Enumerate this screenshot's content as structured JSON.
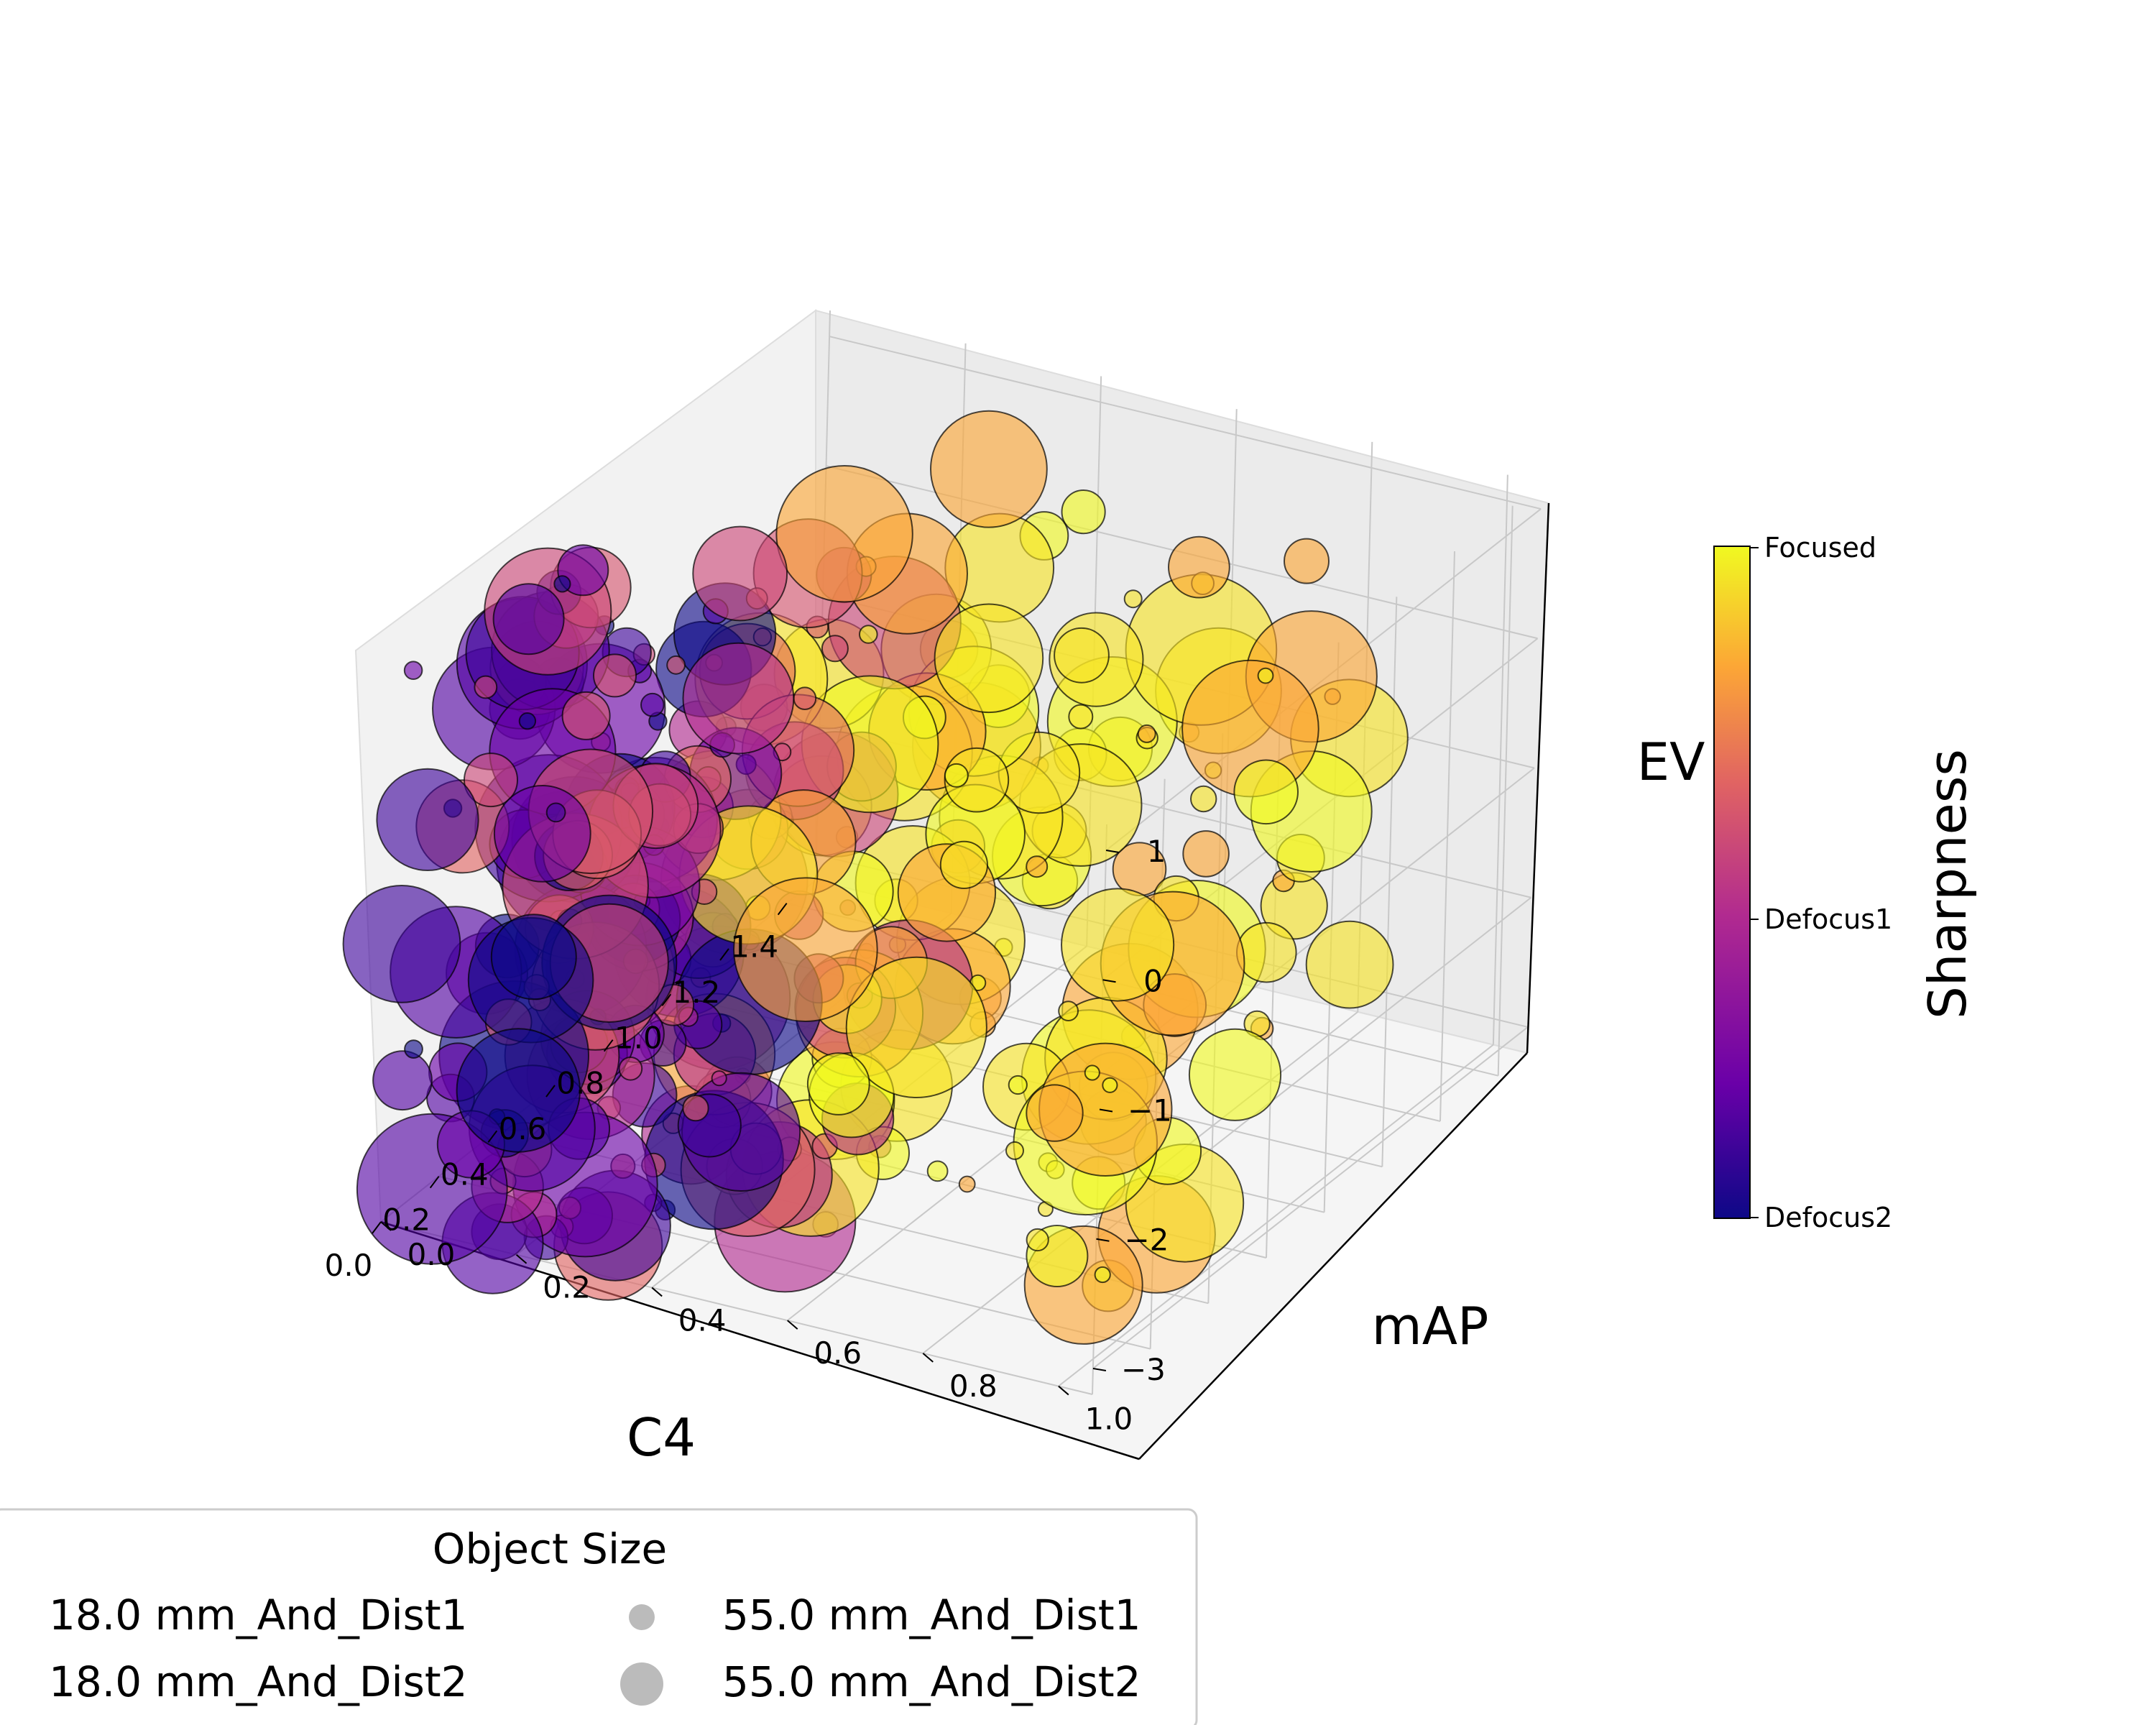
{
  "chart_data": {
    "type": "scatter3d",
    "axes": {
      "x": {
        "label": "C4",
        "ticks": [
          "0.0",
          "0.2",
          "0.4",
          "0.6",
          "0.8",
          "1.0",
          "1.2",
          "1.4"
        ],
        "range": [
          0,
          1.5
        ]
      },
      "y": {
        "label": "mAP",
        "ticks": [
          "0.0",
          "0.2",
          "0.4",
          "0.6",
          "0.8",
          "1.0"
        ],
        "range": [
          0,
          1.05
        ]
      },
      "z": {
        "label": "EV",
        "ticks": [
          "1",
          "0",
          "−1",
          "−2",
          "−3"
        ],
        "range": [
          -3.2,
          1.2
        ]
      }
    },
    "colorbar": {
      "label": "Sharpness",
      "ticks": [
        "Focused",
        "Defocus1",
        "Defocus2"
      ],
      "colormap": "plasma",
      "colors": [
        "#0d0887",
        "#6a00a8",
        "#b12a90",
        "#e16462",
        "#fca636",
        "#f0f921"
      ]
    },
    "legend": {
      "title": "Object Size",
      "entries": [
        {
          "label": "18.0 mm_And_Dist1",
          "marker_size": 0
        },
        {
          "label": "18.0 mm_And_Dist2",
          "marker_size": 0
        },
        {
          "label": "55.0 mm_And_Dist1",
          "marker_size": 1
        },
        {
          "label": "55.0 mm_And_Dist2",
          "marker_size": 2
        }
      ],
      "placement": "lower-left"
    },
    "series": [
      {
        "sharpness": "Focused",
        "ev": [
          1,
          0,
          -1,
          -2,
          -3
        ],
        "c4": [
          0.25,
          0.35,
          0.45,
          0.55,
          0.65,
          0.75,
          0.85,
          1.0,
          1.15
        ],
        "map_range": [
          0.3,
          1.0
        ]
      },
      {
        "sharpness": "Defocus1",
        "ev": [
          1,
          0,
          -1,
          -2,
          -3
        ],
        "c4": [
          0.05,
          0.15,
          0.25,
          0.35,
          0.45,
          0.55,
          0.65
        ],
        "map_range": [
          0.05,
          0.5
        ]
      },
      {
        "sharpness": "Defocus2",
        "ev": [
          1,
          0,
          -1,
          -2,
          -3
        ],
        "c4": [
          0.0,
          0.1,
          0.2,
          0.3,
          0.4,
          0.5
        ],
        "map_range": [
          0.0,
          0.35
        ]
      }
    ]
  }
}
